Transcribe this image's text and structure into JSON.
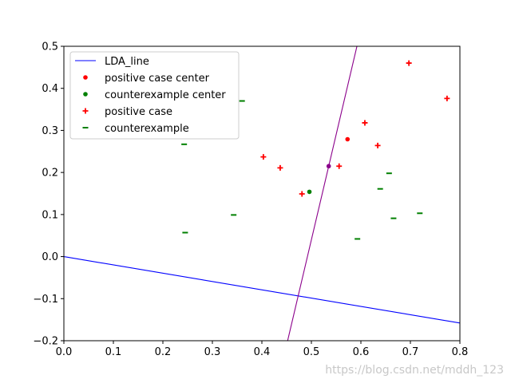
{
  "chart_data": {
    "type": "scatter",
    "title": "",
    "xlabel": "",
    "ylabel": "",
    "xlim": [
      0.0,
      0.8
    ],
    "ylim": [
      -0.2,
      0.5
    ],
    "grid": false,
    "legend_position": "upper-left",
    "x_ticks": [
      "0.0",
      "0.1",
      "0.2",
      "0.3",
      "0.4",
      "0.5",
      "0.6",
      "0.7",
      "0.8"
    ],
    "y_ticks": [
      "0.5",
      "0.4",
      "0.3",
      "0.2",
      "0.1",
      "0.0",
      "−0.1",
      "−0.2"
    ],
    "lines": [
      {
        "name": "LDA_line",
        "color": "#0000ff",
        "points": [
          [
            0.0,
            0.0
          ],
          [
            0.8,
            -0.158
          ]
        ]
      },
      {
        "name": "",
        "color": "#8b008b",
        "points": [
          [
            0.452,
            -0.2
          ],
          [
            0.592,
            0.5
          ]
        ]
      }
    ],
    "series": [
      {
        "name": "positive case center",
        "marker": "dot",
        "color": "#ff0000",
        "points": [
          [
            0.573,
            0.279
          ]
        ]
      },
      {
        "name": "counterexample center",
        "marker": "dot",
        "color": "#008000",
        "points": [
          [
            0.496,
            0.154
          ]
        ]
      },
      {
        "name": "",
        "marker": "dot",
        "color": "#8b008b",
        "points": [
          [
            0.535,
            0.215
          ]
        ]
      },
      {
        "name": "positive case",
        "marker": "plus",
        "color": "#ff0000",
        "points": [
          [
            0.403,
            0.237
          ],
          [
            0.437,
            0.211
          ],
          [
            0.481,
            0.149
          ],
          [
            0.556,
            0.215
          ],
          [
            0.608,
            0.318
          ],
          [
            0.634,
            0.264
          ],
          [
            0.697,
            0.46
          ],
          [
            0.774,
            0.376
          ]
        ]
      },
      {
        "name": "counterexample",
        "marker": "dash",
        "color": "#008000",
        "points": [
          [
            0.245,
            0.057
          ],
          [
            0.243,
            0.267
          ],
          [
            0.343,
            0.099
          ],
          [
            0.36,
            0.37
          ],
          [
            0.593,
            0.042
          ],
          [
            0.639,
            0.161
          ],
          [
            0.657,
            0.198
          ],
          [
            0.666,
            0.091
          ],
          [
            0.719,
            0.103
          ]
        ]
      }
    ],
    "legend": [
      {
        "label": "LDA_line",
        "marker": "line",
        "color": "#0000ff"
      },
      {
        "label": "positive case center",
        "marker": "dot",
        "color": "#ff0000"
      },
      {
        "label": "counterexample center",
        "marker": "dot",
        "color": "#008000"
      },
      {
        "label": "positive case",
        "marker": "plus",
        "color": "#ff0000"
      },
      {
        "label": "counterexample",
        "marker": "dash",
        "color": "#008000"
      }
    ]
  },
  "watermark": "https://blog.csdn.net/mddh_123"
}
